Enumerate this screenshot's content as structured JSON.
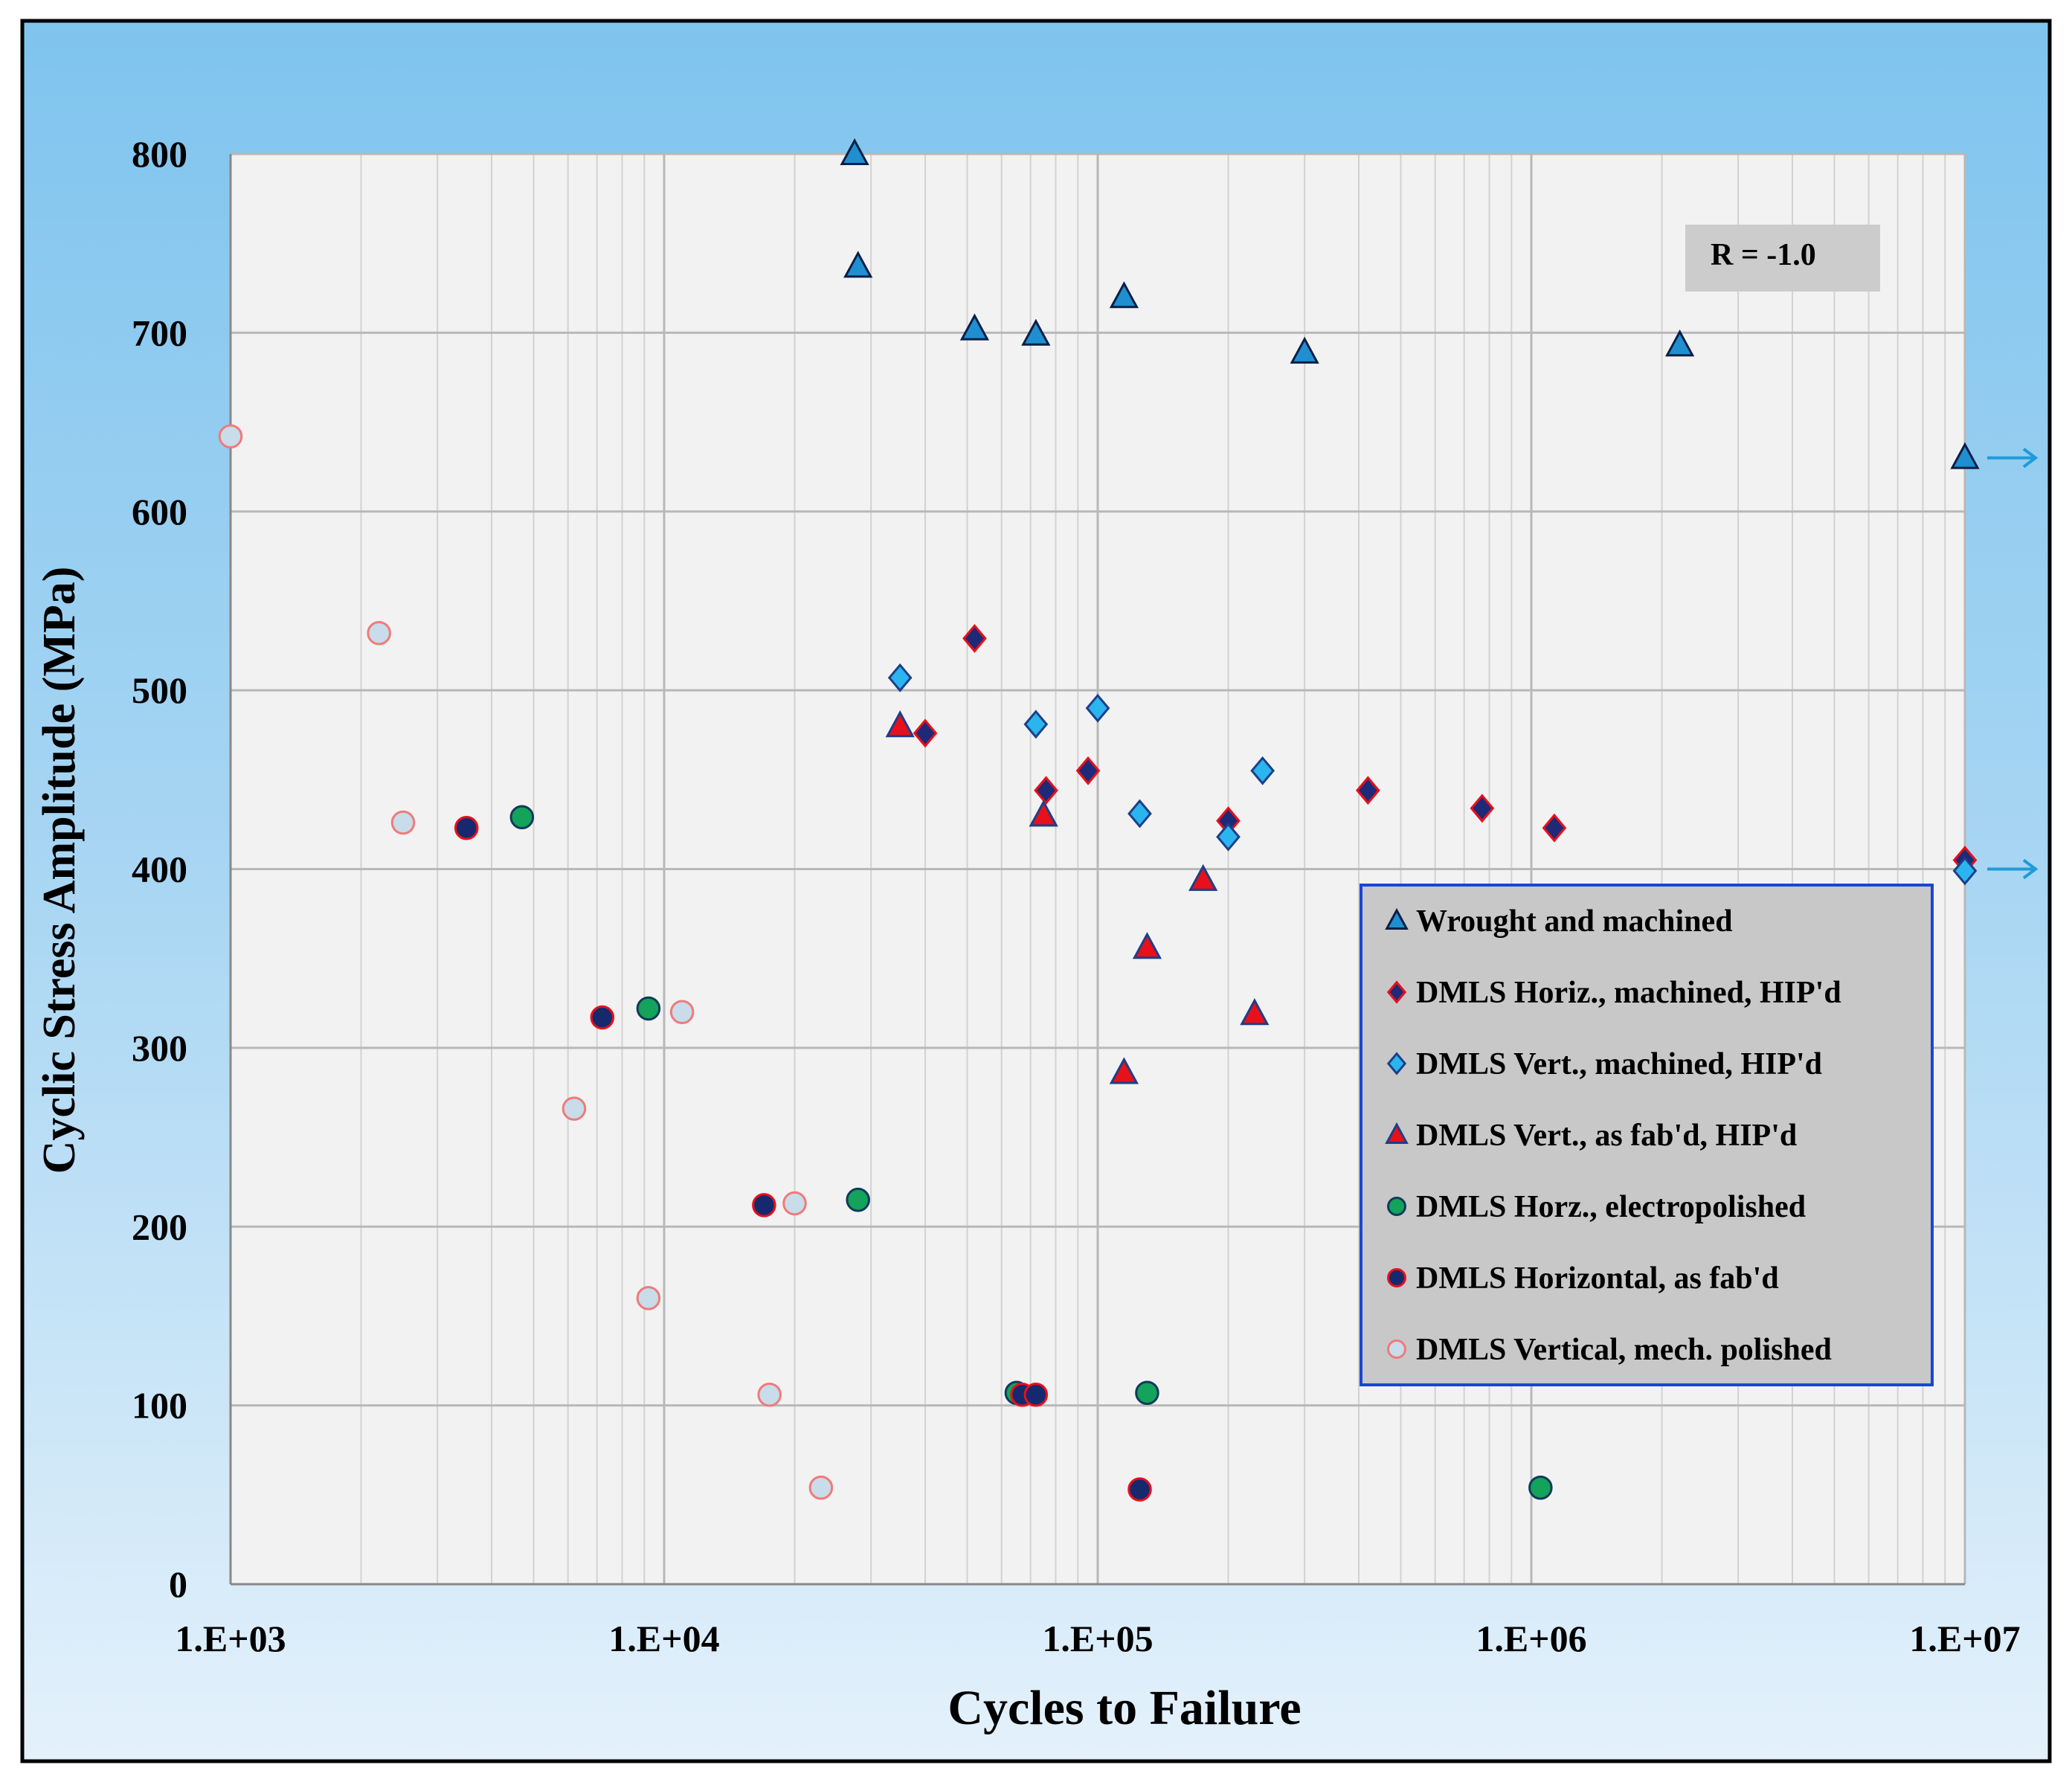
{
  "chart_data": {
    "type": "scatter",
    "title": "",
    "xlabel": "Cycles to Failure",
    "ylabel": "Cyclic Stress Amplitude  (MPa)",
    "x_scale": "log",
    "xlim": [
      1000,
      10000000
    ],
    "ylim": [
      0,
      800
    ],
    "x_ticks": [
      "1.E+03",
      "1.E+04",
      "1.E+05",
      "1.E+06",
      "1.E+07"
    ],
    "y_ticks": [
      "0",
      "100",
      "200",
      "300",
      "400",
      "500",
      "600",
      "700",
      "800"
    ],
    "grid": true,
    "legend_position": "lower-right",
    "annotation": "R = -1.0",
    "runout_arrows": [
      {
        "y": 630,
        "color": "#1f9bd8"
      },
      {
        "y": 400,
        "color": "#1f9bd8"
      }
    ],
    "series": [
      {
        "name": "Wrought and machined",
        "marker": "triangle",
        "fill": "#1f8fd0",
        "stroke": "#0b1f45",
        "points": [
          [
            27500,
            800
          ],
          [
            28000,
            737
          ],
          [
            52000,
            702
          ],
          [
            72000,
            699
          ],
          [
            115000,
            720
          ],
          [
            300000,
            689
          ],
          [
            2200000,
            693
          ],
          [
            10000000,
            630
          ]
        ]
      },
      {
        "name": "DMLS Horiz., machined, HIP'd",
        "marker": "diamond",
        "fill": "#1e2a78",
        "stroke": "#e8101a",
        "points": [
          [
            52000,
            529
          ],
          [
            40000,
            476
          ],
          [
            76000,
            444
          ],
          [
            95000,
            455
          ],
          [
            200000,
            427
          ],
          [
            420000,
            444
          ],
          [
            770000,
            434
          ],
          [
            1130000,
            423
          ],
          [
            10000000,
            405
          ]
        ]
      },
      {
        "name": "DMLS Vert., machined, HIP'd",
        "marker": "diamond",
        "fill": "#2bb5ee",
        "stroke": "#1c3f8a",
        "points": [
          [
            35000,
            507
          ],
          [
            72000,
            481
          ],
          [
            100000,
            490
          ],
          [
            125000,
            431
          ],
          [
            200000,
            418
          ],
          [
            240000,
            455
          ],
          [
            10000000,
            399
          ]
        ]
      },
      {
        "name": "DMLS Vert., as fab'd, HIP'd",
        "marker": "triangle",
        "fill": "#e8101a",
        "stroke": "#1c3f8a",
        "points": [
          [
            35000,
            480
          ],
          [
            75000,
            430
          ],
          [
            175000,
            394
          ],
          [
            130000,
            356
          ],
          [
            230000,
            319
          ],
          [
            115000,
            286
          ]
        ]
      },
      {
        "name": "DMLS Horz., electropolished",
        "marker": "circle",
        "fill": "#13a35a",
        "stroke": "#103a5c",
        "points": [
          [
            4700,
            429
          ],
          [
            9200,
            322
          ],
          [
            28000,
            215
          ],
          [
            65000,
            107
          ],
          [
            130000,
            107
          ],
          [
            1050000,
            54
          ]
        ]
      },
      {
        "name": "DMLS Horizontal, as fab'd",
        "marker": "circle",
        "fill": "#16296e",
        "stroke": "#e8101a",
        "points": [
          [
            3500,
            423
          ],
          [
            7200,
            317
          ],
          [
            17000,
            212
          ],
          [
            67000,
            106
          ],
          [
            72000,
            106
          ],
          [
            125000,
            53
          ]
        ]
      },
      {
        "name": "DMLS Vertical, mech. polished",
        "marker": "circle",
        "fill": "#c8dcea",
        "stroke": "#f07a7a",
        "points": [
          [
            1000,
            642
          ],
          [
            2200,
            532
          ],
          [
            2500,
            426
          ],
          [
            6200,
            266
          ],
          [
            11000,
            320
          ],
          [
            9200,
            160
          ],
          [
            20000,
            213
          ],
          [
            17500,
            106
          ],
          [
            23000,
            54
          ]
        ]
      }
    ]
  }
}
